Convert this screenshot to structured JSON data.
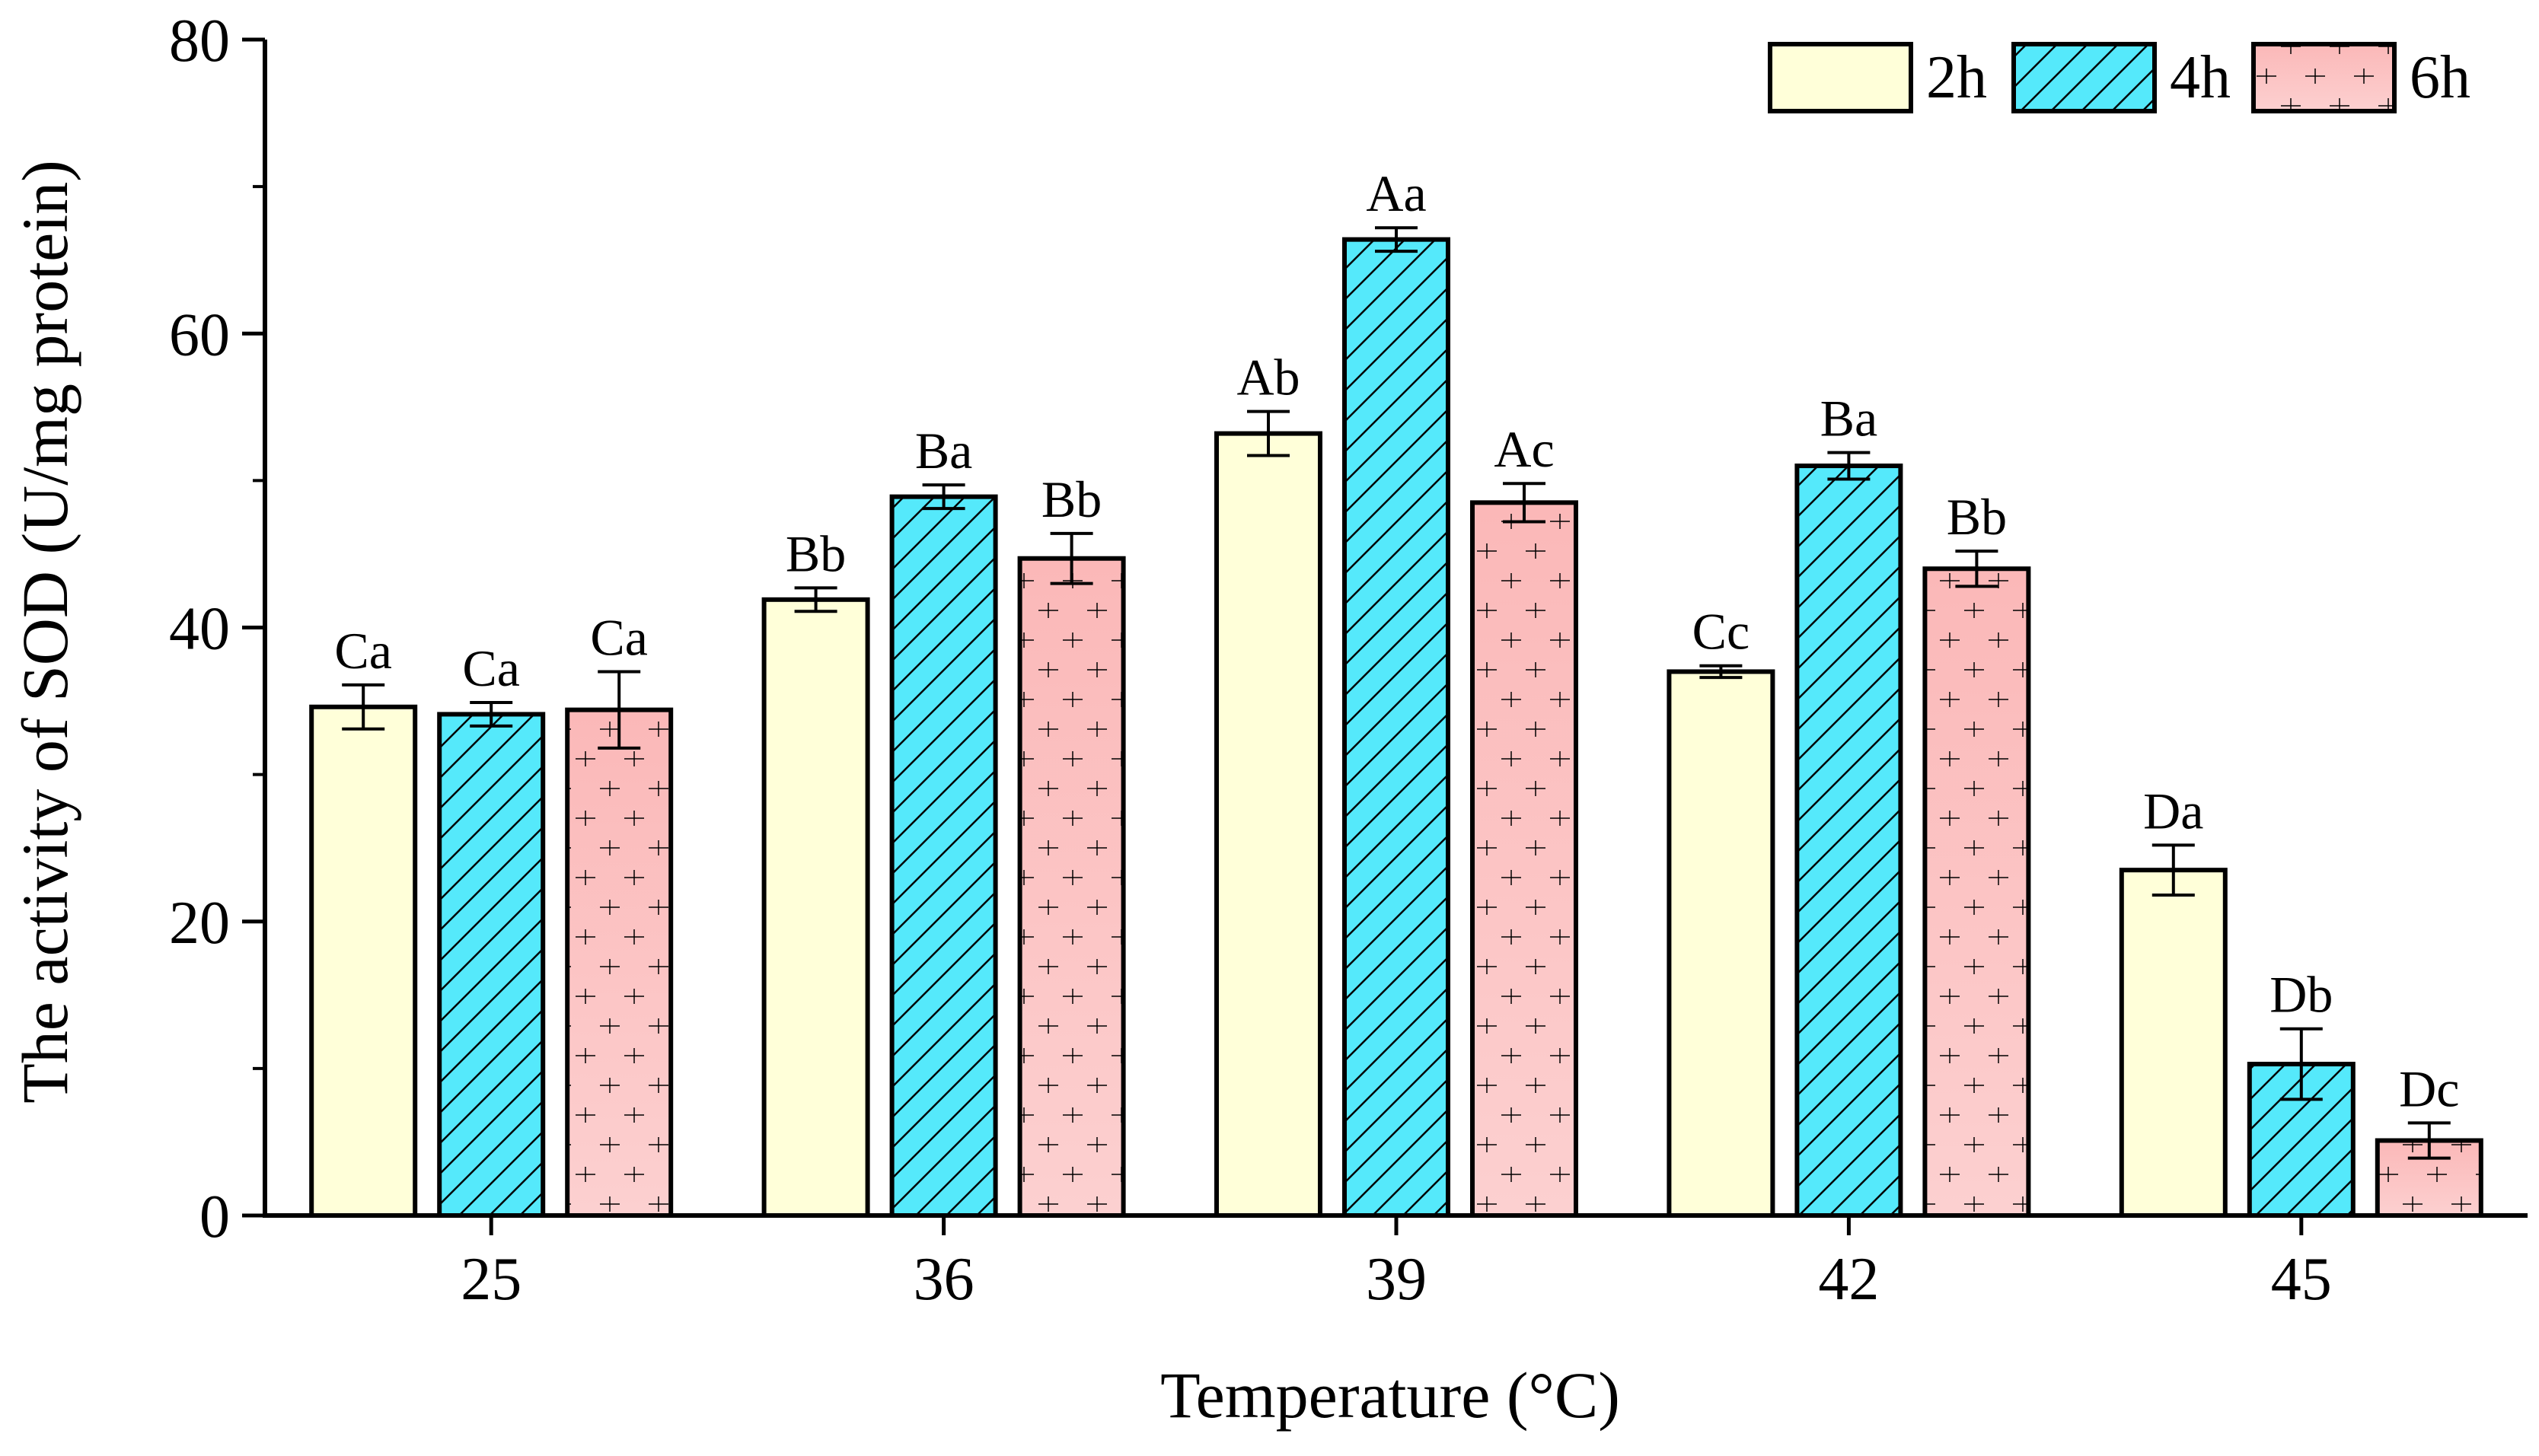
{
  "chart_data": {
    "type": "bar",
    "title": "",
    "xlabel": "Temperature (°C)",
    "ylabel": "The activity of SOD (U/mg protein)",
    "ylim": [
      0,
      80
    ],
    "yticks": [
      "0",
      "20",
      "40",
      "60",
      "80"
    ],
    "categories": [
      "25",
      "36",
      "39",
      "42",
      "45"
    ],
    "legend_position": "top-right",
    "grid": false,
    "series": [
      {
        "name": "2h",
        "color": "#ffffd9",
        "pattern": "none",
        "values": [
          34.6,
          41.9,
          53.2,
          37.0,
          23.5
        ],
        "errors": [
          1.5,
          0.8,
          1.5,
          0.4,
          1.7
        ],
        "labels": [
          "Ca",
          "Bb",
          "Ab",
          "Cc",
          "Da"
        ]
      },
      {
        "name": "4h",
        "color": "#55e9fb",
        "pattern": "diagonal",
        "values": [
          34.1,
          48.9,
          66.4,
          51.0,
          10.3
        ],
        "errors": [
          0.8,
          0.8,
          0.8,
          0.9,
          2.4
        ],
        "labels": [
          "Ca",
          "Ba",
          "Aa",
          "Ba",
          "Db"
        ]
      },
      {
        "name": "6h",
        "color": "#fbbaba",
        "pattern": "plus",
        "values": [
          34.4,
          44.7,
          48.5,
          44.0,
          5.1
        ],
        "errors": [
          2.6,
          1.7,
          1.3,
          1.2,
          1.2
        ],
        "labels": [
          "Ca",
          "Bb",
          "Ac",
          "Bb",
          "Dc"
        ]
      }
    ]
  }
}
